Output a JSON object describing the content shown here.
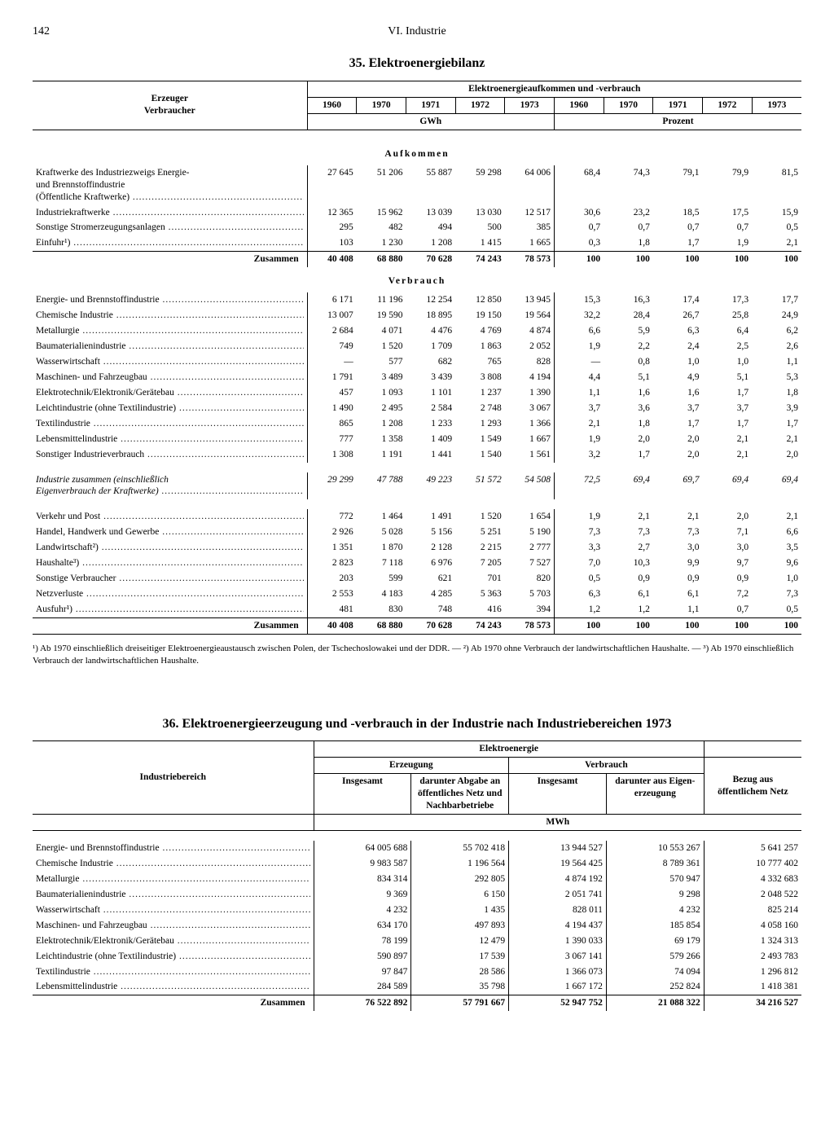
{
  "page_number": "142",
  "chapter_heading": "VI. Industrie",
  "table35": {
    "title": "35. Elektroenergiebilanz",
    "rowhead_title": "Erzeuger\nVerbraucher",
    "superhead": "Elektroenergieaufkommen und -verbrauch",
    "years": [
      "1960",
      "1970",
      "1971",
      "1972",
      "1973",
      "1960",
      "1970",
      "1971",
      "1972",
      "1973"
    ],
    "unit_left": "GWh",
    "unit_right": "Prozent",
    "sec_aufkommen": "Aufkommen",
    "sec_verbrauch": "Verbrauch",
    "aufkommen_rows": [
      {
        "label": "Kraftwerke des Industriezweigs Energie- und Brennstoffindustrie (Öffentliche Kraftwerke)",
        "v": [
          "27 645",
          "51 206",
          "55 887",
          "59 298",
          "64 006",
          "68,4",
          "74,3",
          "79,1",
          "79,9",
          "81,5"
        ]
      },
      {
        "label": "Industriekraftwerke",
        "v": [
          "12 365",
          "15 962",
          "13 039",
          "13 030",
          "12 517",
          "30,6",
          "23,2",
          "18,5",
          "17,5",
          "15,9"
        ]
      },
      {
        "label": "Sonstige Stromerzeugungsanlagen",
        "v": [
          "295",
          "482",
          "494",
          "500",
          "385",
          "0,7",
          "0,7",
          "0,7",
          "0,7",
          "0,5"
        ]
      },
      {
        "label": "Einfuhr¹)",
        "v": [
          "103",
          "1 230",
          "1 208",
          "1 415",
          "1 665",
          "0,3",
          "1,8",
          "1,7",
          "1,9",
          "2,1"
        ]
      }
    ],
    "aufkommen_total": {
      "label": "Zusammen",
      "v": [
        "40 408",
        "68 880",
        "70 628",
        "74 243",
        "78 573",
        "100",
        "100",
        "100",
        "100",
        "100"
      ]
    },
    "verbrauch_rows": [
      {
        "label": "Energie- und Brennstoffindustrie",
        "v": [
          "6 171",
          "11 196",
          "12 254",
          "12 850",
          "13 945",
          "15,3",
          "16,3",
          "17,4",
          "17,3",
          "17,7"
        ]
      },
      {
        "label": "Chemische Industrie",
        "v": [
          "13 007",
          "19 590",
          "18 895",
          "19 150",
          "19 564",
          "32,2",
          "28,4",
          "26,7",
          "25,8",
          "24,9"
        ]
      },
      {
        "label": "Metallurgie",
        "v": [
          "2 684",
          "4 071",
          "4 476",
          "4 769",
          "4 874",
          "6,6",
          "5,9",
          "6,3",
          "6,4",
          "6,2"
        ]
      },
      {
        "label": "Baumaterialienindustrie",
        "v": [
          "749",
          "1 520",
          "1 709",
          "1 863",
          "2 052",
          "1,9",
          "2,2",
          "2,4",
          "2,5",
          "2,6"
        ]
      },
      {
        "label": "Wasserwirtschaft",
        "v": [
          "—",
          "577",
          "682",
          "765",
          "828",
          "—",
          "0,8",
          "1,0",
          "1,0",
          "1,1"
        ]
      },
      {
        "label": "Maschinen- und Fahrzeugbau",
        "v": [
          "1 791",
          "3 489",
          "3 439",
          "3 808",
          "4 194",
          "4,4",
          "5,1",
          "4,9",
          "5,1",
          "5,3"
        ]
      },
      {
        "label": "Elektrotechnik/Elektronik/Gerätebau",
        "v": [
          "457",
          "1 093",
          "1 101",
          "1 237",
          "1 390",
          "1,1",
          "1,6",
          "1,6",
          "1,7",
          "1,8"
        ]
      },
      {
        "label": "Leichtindustrie (ohne Textilindustrie)",
        "v": [
          "1 490",
          "2 495",
          "2 584",
          "2 748",
          "3 067",
          "3,7",
          "3,6",
          "3,7",
          "3,7",
          "3,9"
        ]
      },
      {
        "label": "Textilindustrie",
        "v": [
          "865",
          "1 208",
          "1 233",
          "1 293",
          "1 366",
          "2,1",
          "1,8",
          "1,7",
          "1,7",
          "1,7"
        ]
      },
      {
        "label": "Lebensmittelindustrie",
        "v": [
          "777",
          "1 358",
          "1 409",
          "1 549",
          "1 667",
          "1,9",
          "2,0",
          "2,0",
          "2,1",
          "2,1"
        ]
      },
      {
        "label": "Sonstiger Industrieverbrauch",
        "v": [
          "1 308",
          "1 191",
          "1 441",
          "1 540",
          "1 561",
          "3,2",
          "1,7",
          "2,0",
          "2,1",
          "2,0"
        ]
      }
    ],
    "industrie_zusammen": {
      "label": "Industrie zusammen (einschließlich Eigenverbrauch der Kraftwerke)",
      "v": [
        "29 299",
        "47 788",
        "49 223",
        "51 572",
        "54 508",
        "72,5",
        "69,4",
        "69,7",
        "69,4",
        "69,4"
      ]
    },
    "verbrauch_rows2": [
      {
        "label": "Verkehr und Post",
        "v": [
          "772",
          "1 464",
          "1 491",
          "1 520",
          "1 654",
          "1,9",
          "2,1",
          "2,1",
          "2,0",
          "2,1"
        ]
      },
      {
        "label": "Handel, Handwerk und Gewerbe",
        "v": [
          "2 926",
          "5 028",
          "5 156",
          "5 251",
          "5 190",
          "7,3",
          "7,3",
          "7,3",
          "7,1",
          "6,6"
        ]
      },
      {
        "label": "Landwirtschaft²)",
        "v": [
          "1 351",
          "1 870",
          "2 128",
          "2 215",
          "2 777",
          "3,3",
          "2,7",
          "3,0",
          "3,0",
          "3,5"
        ]
      },
      {
        "label": "Haushalte³)",
        "v": [
          "2 823",
          "7 118",
          "6 976",
          "7 205",
          "7 527",
          "7,0",
          "10,3",
          "9,9",
          "9,7",
          "9,6"
        ]
      },
      {
        "label": "Sonstige Verbraucher",
        "v": [
          "203",
          "599",
          "621",
          "701",
          "820",
          "0,5",
          "0,9",
          "0,9",
          "0,9",
          "1,0"
        ]
      },
      {
        "label": "Netzverluste",
        "v": [
          "2 553",
          "4 183",
          "4 285",
          "5 363",
          "5 703",
          "6,3",
          "6,1",
          "6,1",
          "7,2",
          "7,3"
        ]
      },
      {
        "label": "Ausfuhr¹)",
        "v": [
          "481",
          "830",
          "748",
          "416",
          "394",
          "1,2",
          "1,2",
          "1,1",
          "0,7",
          "0,5"
        ]
      }
    ],
    "verbrauch_total": {
      "label": "Zusammen",
      "v": [
        "40 408",
        "68 880",
        "70 628",
        "74 243",
        "78 573",
        "100",
        "100",
        "100",
        "100",
        "100"
      ]
    },
    "footnote": "¹) Ab 1970 einschließlich dreiseitiger Elektroenergieaustausch zwischen Polen, der Tschechoslowakei und der DDR. — ²) Ab 1970 ohne Verbrauch der landwirtschaftlichen Haushalte. — ³) Ab 1970 einschließlich Verbrauch der landwirtschaftlichen Haushalte."
  },
  "table36": {
    "title": "36. Elektroenergieerzeugung und -verbrauch in der Industrie nach Industriebereichen 1973",
    "rowhead_title": "Industriebereich",
    "superhead": "Elektroenergie",
    "col_erzeugung": "Erzeugung",
    "col_verbrauch": "Verbrauch",
    "cols": [
      "Insgesamt",
      "darunter Abgabe an öffentliches Netz und Nachbar­betriebe",
      "Insgesamt",
      "darunter aus Eigen­erzeugung",
      "Bezug aus öffentlichem Netz"
    ],
    "unit": "MWh",
    "rows": [
      {
        "label": "Energie- und Brennstoffindustrie",
        "v": [
          "64 005 688",
          "55 702 418",
          "13 944 527",
          "10 553 267",
          "5 641 257"
        ]
      },
      {
        "label": "Chemische Industrie",
        "v": [
          "9 983 587",
          "1 196 564",
          "19 564 425",
          "8 789 361",
          "10 777 402"
        ]
      },
      {
        "label": "Metallurgie",
        "v": [
          "834 314",
          "292 805",
          "4 874 192",
          "570 947",
          "4 332 683"
        ]
      },
      {
        "label": "Baumaterialienindustrie",
        "v": [
          "9 369",
          "6 150",
          "2 051 741",
          "9 298",
          "2 048 522"
        ]
      },
      {
        "label": "Wasserwirtschaft",
        "v": [
          "4 232",
          "1 435",
          "828 011",
          "4 232",
          "825 214"
        ]
      },
      {
        "label": "Maschinen- und Fahrzeugbau",
        "v": [
          "634 170",
          "497 893",
          "4 194 437",
          "185 854",
          "4 058 160"
        ]
      },
      {
        "label": "Elektrotechnik/Elektronik/Gerätebau",
        "v": [
          "78 199",
          "12 479",
          "1 390 033",
          "69 179",
          "1 324 313"
        ]
      },
      {
        "label": "Leichtindustrie (ohne Textilindustrie)",
        "v": [
          "590 897",
          "17 539",
          "3 067 141",
          "579 266",
          "2 493 783"
        ]
      },
      {
        "label": "Textilindustrie",
        "v": [
          "97 847",
          "28 586",
          "1 366 073",
          "74 094",
          "1 296 812"
        ]
      },
      {
        "label": "Lebensmittelindustrie",
        "v": [
          "284 589",
          "35 798",
          "1 667 172",
          "252 824",
          "1 418 381"
        ]
      }
    ],
    "total": {
      "label": "Zusammen",
      "v": [
        "76 522 892",
        "57 791 667",
        "52 947 752",
        "21 088 322",
        "34 216 527"
      ]
    }
  }
}
